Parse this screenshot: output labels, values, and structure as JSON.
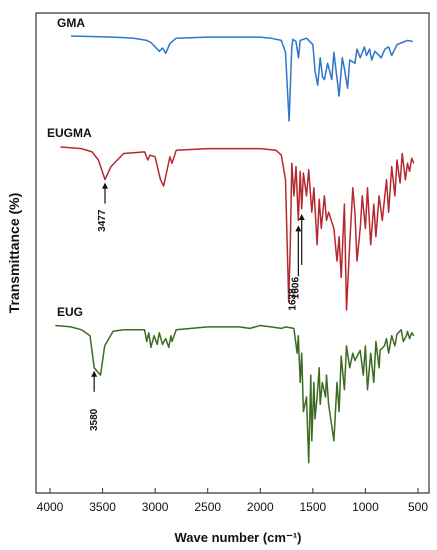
{
  "chart_data": {
    "type": "line",
    "title": "",
    "xlabel": "Wave number (cm⁻¹)",
    "ylabel": "Transmittance (%)",
    "xlim": [
      4000,
      500
    ],
    "x_reversed": true,
    "x_ticks": [
      4000,
      3500,
      3000,
      2500,
      2000,
      1500,
      1000,
      500
    ],
    "grid": false,
    "legend": "none",
    "series": [
      {
        "name": "GMA",
        "color": "#2f75c8",
        "x": [
          3800,
          3400,
          3200,
          3080,
          3040,
          3000,
          2960,
          2930,
          2900,
          2860,
          2800,
          2500,
          2200,
          2000,
          1900,
          1800,
          1760,
          1726,
          1700,
          1690,
          1660,
          1637,
          1620,
          1560,
          1500,
          1480,
          1454,
          1430,
          1407,
          1390,
          1360,
          1320,
          1300,
          1250,
          1220,
          1200,
          1170,
          1150,
          1100,
          1080,
          1050,
          1010,
          990,
          960,
          940,
          910,
          890,
          850,
          815,
          780,
          750,
          700,
          650,
          600,
          550
        ],
        "y": [
          100,
          99,
          98,
          96,
          94,
          90,
          86,
          89,
          84,
          93,
          98,
          99,
          99,
          99,
          98,
          96,
          85,
          22,
          90,
          97,
          95,
          80,
          96,
          98,
          92,
          68,
          55,
          80,
          62,
          60,
          75,
          60,
          85,
          45,
          80,
          70,
          52,
          78,
          75,
          88,
          80,
          90,
          82,
          88,
          78,
          86,
          84,
          80,
          88,
          90,
          82,
          92,
          94,
          96,
          95
        ]
      },
      {
        "name": "EUGMA",
        "color": "#b5292e",
        "x": [
          3900,
          3700,
          3600,
          3540,
          3477,
          3420,
          3300,
          3100,
          3070,
          3050,
          3000,
          2950,
          2920,
          2880,
          2860,
          2840,
          2800,
          2500,
          2200,
          2000,
          1850,
          1800,
          1760,
          1730,
          1715,
          1700,
          1680,
          1660,
          1638,
          1620,
          1606,
          1590,
          1560,
          1540,
          1510,
          1490,
          1460,
          1440,
          1420,
          1390,
          1370,
          1350,
          1300,
          1270,
          1250,
          1230,
          1200,
          1180,
          1150,
          1120,
          1100,
          1080,
          1050,
          1030,
          1000,
          980,
          950,
          920,
          900,
          870,
          840,
          800,
          780,
          750,
          720,
          700,
          670,
          650,
          620,
          600,
          580,
          560,
          540
        ],
        "y": [
          100,
          99,
          97,
          92,
          80,
          88,
          96,
          97,
          92,
          95,
          94,
          80,
          76,
          88,
          94,
          90,
          98,
          99,
          99,
          99,
          98,
          95,
          80,
          5,
          40,
          90,
          70,
          88,
          55,
          85,
          62,
          84,
          70,
          86,
          60,
          75,
          40,
          68,
          50,
          70,
          55,
          60,
          50,
          30,
          45,
          20,
          65,
          0,
          40,
          75,
          60,
          30,
          50,
          70,
          50,
          75,
          40,
          65,
          45,
          70,
          55,
          80,
          60,
          88,
          70,
          92,
          78,
          96,
          80,
          90,
          85,
          93,
          90
        ]
      },
      {
        "name": "EUG",
        "color": "#3c6b22",
        "x": [
          3950,
          3800,
          3700,
          3620,
          3580,
          3520,
          3480,
          3400,
          3300,
          3100,
          3080,
          3060,
          3040,
          3010,
          2980,
          2960,
          2930,
          2900,
          2870,
          2850,
          2840,
          2800,
          2500,
          2200,
          2100,
          2000,
          1900,
          1800,
          1760,
          1680,
          1650,
          1638,
          1620,
          1606,
          1590,
          1560,
          1540,
          1520,
          1510,
          1490,
          1480,
          1460,
          1440,
          1430,
          1410,
          1380,
          1370,
          1350,
          1300,
          1270,
          1250,
          1230,
          1200,
          1180,
          1150,
          1120,
          1100,
          1050,
          1020,
          1000,
          980,
          950,
          920,
          900,
          870,
          860,
          820,
          800,
          780,
          750,
          720,
          700,
          660,
          640,
          610,
          600,
          580,
          560,
          540
        ],
        "y": [
          99,
          98,
          96,
          92,
          70,
          65,
          85,
          95,
          96,
          96,
          88,
          94,
          84,
          92,
          86,
          94,
          86,
          90,
          84,
          92,
          88,
          96,
          98,
          98,
          97,
          99,
          98,
          97,
          98,
          97,
          80,
          92,
          60,
          80,
          40,
          50,
          5,
          65,
          20,
          60,
          35,
          50,
          70,
          45,
          60,
          50,
          65,
          45,
          20,
          60,
          40,
          78,
          55,
          85,
          70,
          80,
          75,
          82,
          65,
          85,
          55,
          80,
          60,
          88,
          70,
          82,
          85,
          90,
          80,
          92,
          85,
          93,
          96,
          88,
          92,
          95,
          90,
          94,
          92
        ]
      }
    ],
    "annotations": [
      {
        "series": "EUGMA",
        "x": 3477,
        "text": "3477"
      },
      {
        "series": "EUGMA",
        "x": 1638,
        "text": "1638"
      },
      {
        "series": "EUGMA",
        "x": 1606,
        "text": "1606"
      },
      {
        "series": "EUG",
        "x": 3580,
        "text": "3580"
      }
    ]
  }
}
